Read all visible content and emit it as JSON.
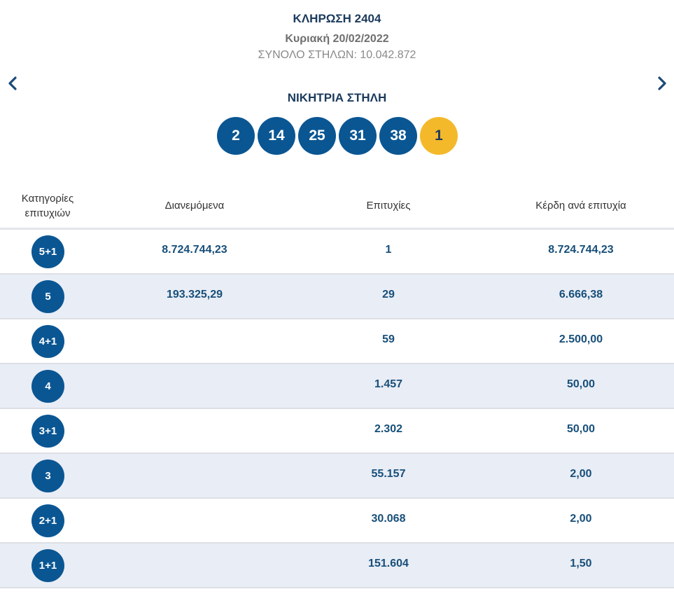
{
  "draw": {
    "title": "ΚΛΗΡΩΣΗ 2404",
    "date": "Κυριακή 20/02/2022",
    "total_columns": "ΣΥΝΟΛΟ ΣΤΗΛΩΝ: 10.042.872"
  },
  "winning": {
    "label": "ΝΙΚΗΤΡΙΑ ΣΤΗΛΗ",
    "numbers": [
      "2",
      "14",
      "25",
      "31",
      "38"
    ],
    "bonus": "1"
  },
  "colors": {
    "ball_blue": "#0a5693",
    "bonus_yellow": "#f4b92a",
    "title_navy": "#1b3a5c",
    "stripe": "#e9edf5"
  },
  "icons": {
    "prev": "chevron-left-icon",
    "next": "chevron-right-icon"
  },
  "table": {
    "headers": {
      "category": "Κατηγορίες επιτυχιών",
      "distributed": "Διανεμόμενα",
      "winners": "Επιτυχίες",
      "prize": "Κέρδη ανά επιτυχία"
    },
    "rows": [
      {
        "category": "5+1",
        "distributed": "8.724.744,23",
        "winners": "1",
        "prize": "8.724.744,23"
      },
      {
        "category": "5",
        "distributed": "193.325,29",
        "winners": "29",
        "prize": "6.666,38"
      },
      {
        "category": "4+1",
        "distributed": "",
        "winners": "59",
        "prize": "2.500,00"
      },
      {
        "category": "4",
        "distributed": "",
        "winners": "1.457",
        "prize": "50,00"
      },
      {
        "category": "3+1",
        "distributed": "",
        "winners": "2.302",
        "prize": "50,00"
      },
      {
        "category": "3",
        "distributed": "",
        "winners": "55.157",
        "prize": "2,00"
      },
      {
        "category": "2+1",
        "distributed": "",
        "winners": "30.068",
        "prize": "2,00"
      },
      {
        "category": "1+1",
        "distributed": "",
        "winners": "151.604",
        "prize": "1,50"
      }
    ]
  }
}
